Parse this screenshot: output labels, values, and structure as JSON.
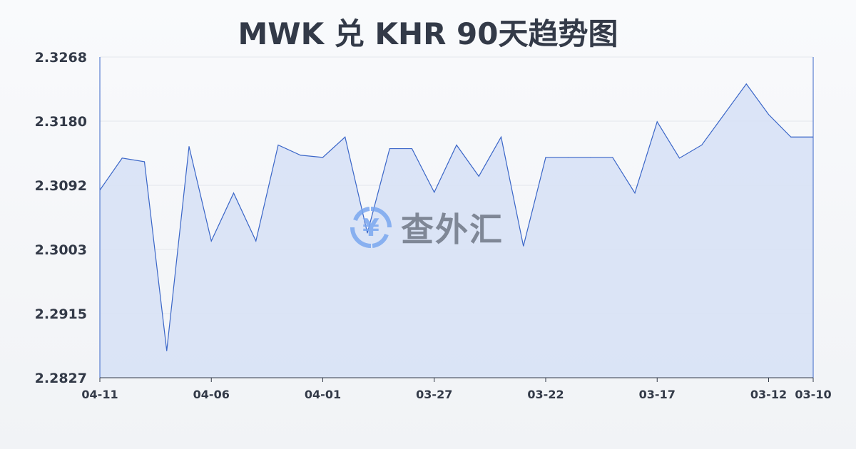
{
  "chart_data": {
    "type": "area",
    "title": "MWK 兑 KHR 90天趋势图",
    "xlabel": "",
    "ylabel": "",
    "x": [
      "04-11",
      "04-10",
      "04-09",
      "04-08",
      "04-07",
      "04-06",
      "04-05",
      "04-04",
      "04-03",
      "04-02",
      "04-01",
      "03-31",
      "03-30",
      "03-29",
      "03-28",
      "03-27",
      "03-26",
      "03-25",
      "03-24",
      "03-23",
      "03-22",
      "03-21",
      "03-20",
      "03-19",
      "03-18",
      "03-17",
      "03-16",
      "03-15",
      "03-14",
      "03-13",
      "03-12",
      "03-11",
      "03-10"
    ],
    "values": [
      2.3085,
      2.3129,
      2.3124,
      2.2864,
      2.3145,
      2.3015,
      2.3081,
      2.3015,
      2.3147,
      2.3133,
      2.313,
      2.3158,
      2.3026,
      2.3142,
      2.3142,
      2.3082,
      2.3147,
      2.3104,
      2.3158,
      2.3008,
      2.313,
      2.313,
      2.313,
      2.313,
      2.3081,
      2.3179,
      2.3129,
      2.3147,
      2.3189,
      2.3231,
      2.3189,
      2.3158,
      2.3158
    ],
    "x_tick_labels": [
      "04-11",
      "04-06",
      "04-01",
      "03-27",
      "03-22",
      "03-17",
      "03-12",
      "03-10"
    ],
    "y_tick_labels": [
      "2.3268",
      "2.3180",
      "2.3092",
      "2.3003",
      "2.2915",
      "2.2827"
    ],
    "ylim": [
      2.2827,
      2.3268
    ],
    "grid": true,
    "line_color": "#3a66c8",
    "fill_color": "#d6e1f6"
  },
  "watermark": {
    "text": "查外汇",
    "icon": "yen-exchange-icon",
    "color": "#7aa7f0"
  }
}
